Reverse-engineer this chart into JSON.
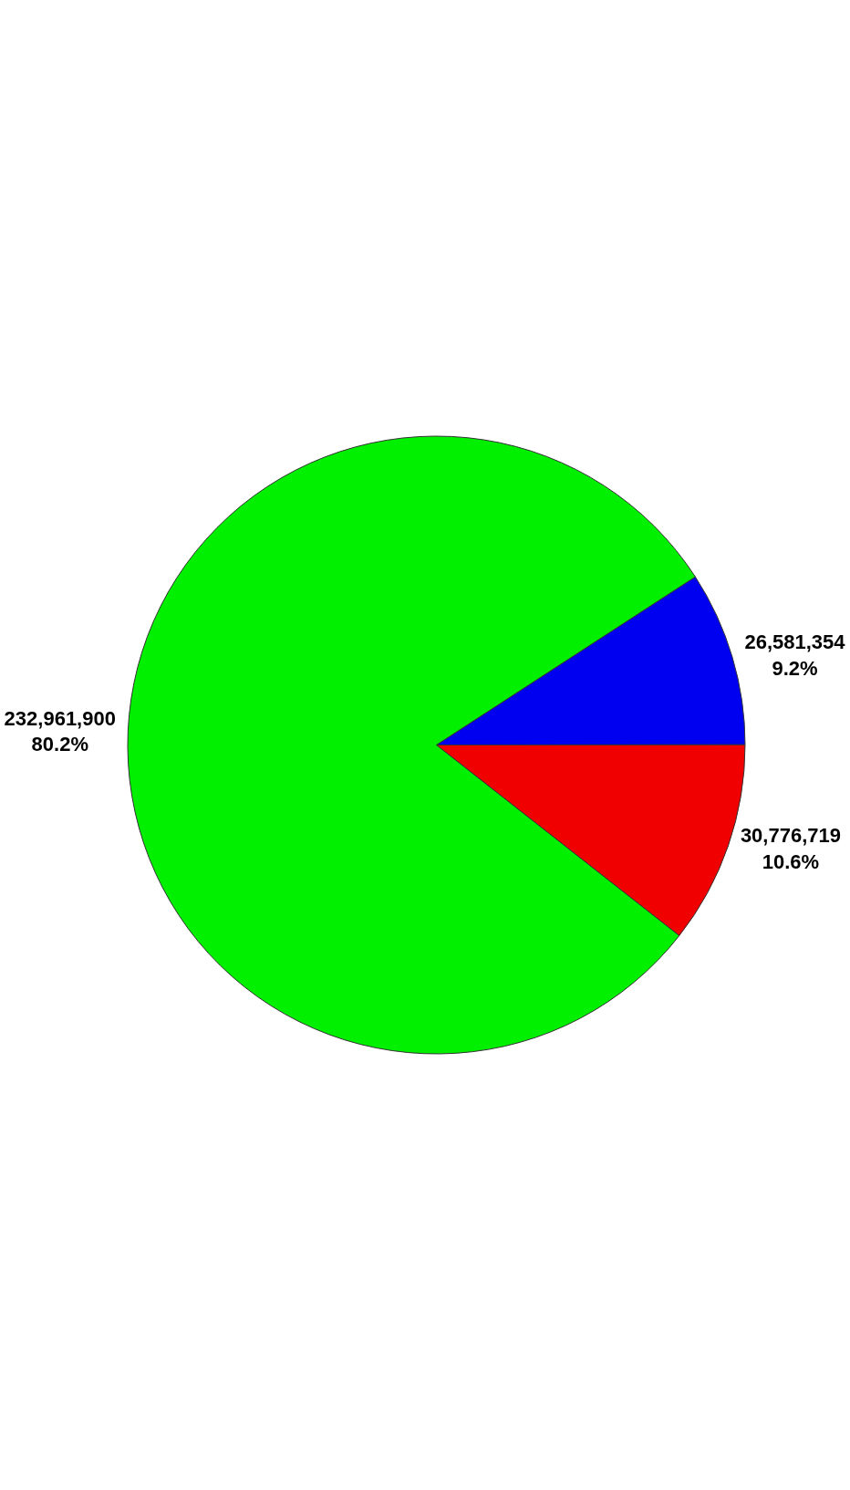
{
  "chart_data": {
    "type": "pie",
    "categories": [
      null,
      null,
      null
    ],
    "values": [
      26581354,
      30776719,
      232961900
    ],
    "colors": [
      "#0000f0",
      "#f00000",
      "#00f000"
    ],
    "value_labels": [
      "26,581,354\n9.2%",
      "30,776,719\n10.6%",
      "232,961,900\n80.2%"
    ],
    "legend": false
  }
}
